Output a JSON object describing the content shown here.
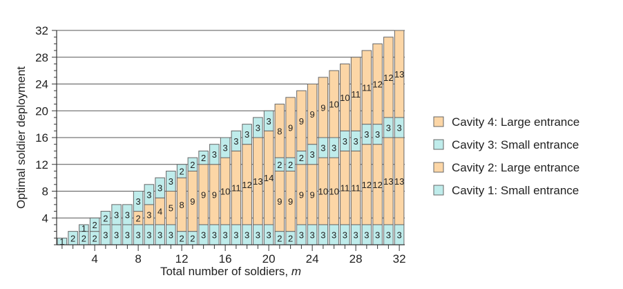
{
  "chart_data": {
    "type": "bar",
    "stacked": true,
    "xlabel": "Total number of soldiers, m",
    "xlabel_text": "Total number of soldiers, ",
    "xlabel_var": "m",
    "ylabel": "Optimal soldier deployment",
    "x": [
      1,
      2,
      3,
      4,
      5,
      6,
      7,
      8,
      9,
      10,
      11,
      12,
      13,
      14,
      15,
      16,
      17,
      18,
      19,
      20,
      21,
      22,
      23,
      24,
      25,
      26,
      27,
      28,
      29,
      30,
      31,
      32
    ],
    "xticks": [
      4,
      8,
      12,
      16,
      20,
      24,
      28,
      32
    ],
    "yticks": [
      4,
      8,
      12,
      16,
      20,
      24,
      28,
      32
    ],
    "ylim": [
      0,
      32
    ],
    "xlim": [
      0.5,
      32.5
    ],
    "grid": "horizontal",
    "legend_position": "right",
    "series": [
      {
        "name": "Cavity 1: Small entrance",
        "color": "#bfeceb",
        "values": [
          1,
          2,
          2,
          2,
          3,
          3,
          3,
          3,
          3,
          3,
          3,
          2,
          2,
          3,
          3,
          3,
          3,
          3,
          3,
          3,
          2,
          2,
          3,
          3,
          3,
          3,
          3,
          3,
          3,
          3,
          3,
          3
        ]
      },
      {
        "name": "Cavity 2: Large entrance",
        "color": "#fcd6a6",
        "values": [
          0,
          0,
          0,
          0,
          0,
          0,
          0,
          2,
          3,
          4,
          5,
          8,
          9,
          9,
          9,
          10,
          11,
          12,
          13,
          14,
          9,
          9,
          9,
          9,
          10,
          10,
          11,
          11,
          12,
          12,
          13,
          13
        ]
      },
      {
        "name": "Cavity 3: Small entrance",
        "color": "#bfeceb",
        "values": [
          0,
          0,
          1,
          2,
          2,
          3,
          3,
          3,
          3,
          3,
          3,
          2,
          2,
          2,
          3,
          3,
          3,
          3,
          3,
          3,
          2,
          2,
          2,
          3,
          3,
          3,
          3,
          3,
          3,
          3,
          3,
          3
        ]
      },
      {
        "name": "Cavity 4: Large entrance",
        "color": "#fcd6a6",
        "values": [
          0,
          0,
          0,
          0,
          0,
          0,
          0,
          0,
          0,
          0,
          0,
          0,
          0,
          0,
          0,
          0,
          0,
          0,
          0,
          0,
          8,
          9,
          9,
          9,
          9,
          10,
          10,
          11,
          11,
          12,
          12,
          13
        ]
      }
    ],
    "legend_order": [
      "Cavity 4: Large entrance",
      "Cavity 3: Small entrance",
      "Cavity 2: Large entrance",
      "Cavity 1: Small entrance"
    ]
  }
}
